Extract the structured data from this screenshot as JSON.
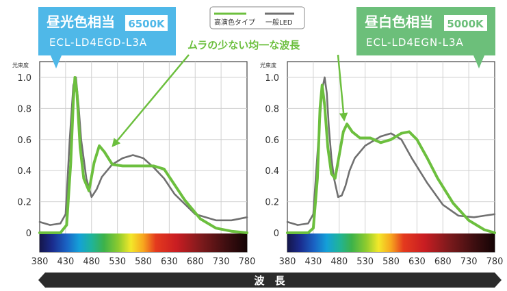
{
  "legend": {
    "high_cri": "高演色タイプ",
    "standard": "一般LED",
    "colors": {
      "high_cri": "#6cbf3e",
      "standard": "#707070"
    }
  },
  "annotation": {
    "text": "ムラの少ない均一な波長",
    "color": "#6cbf3e"
  },
  "x_axis_band_label": "波　長",
  "chart_data": [
    {
      "type": "line",
      "panel": "left",
      "title": "昼光色相当",
      "badge": "6500K",
      "model": "ECL-LD4EGD-L3A",
      "title_color": "#4fb8e8",
      "ylabel": "光束度",
      "xlim": [
        380,
        780
      ],
      "ylim": [
        0,
        1.0
      ],
      "xticks": [
        "380",
        "430",
        "480",
        "530",
        "580",
        "630",
        "680",
        "730",
        "780"
      ],
      "yticks": [
        "0",
        "0.2",
        "0.4",
        "0.6",
        "0.8",
        "1.0"
      ],
      "series": [
        {
          "name": "高演色タイプ",
          "x": [
            380,
            420,
            432,
            440,
            445,
            448,
            452,
            458,
            465,
            475,
            485,
            495,
            505,
            520,
            540,
            560,
            600,
            620,
            640,
            660,
            690,
            720,
            750,
            780
          ],
          "y": [
            0,
            0,
            0.05,
            0.45,
            0.85,
            1.0,
            0.9,
            0.55,
            0.35,
            0.27,
            0.45,
            0.56,
            0.52,
            0.44,
            0.43,
            0.43,
            0.43,
            0.41,
            0.31,
            0.21,
            0.09,
            0.03,
            0.01,
            0
          ]
        },
        {
          "name": "一般LED",
          "x": [
            380,
            400,
            420,
            430,
            438,
            445,
            450,
            455,
            460,
            470,
            480,
            490,
            500,
            520,
            540,
            560,
            580,
            600,
            620,
            640,
            680,
            720,
            750,
            780
          ],
          "y": [
            0.07,
            0.05,
            0.06,
            0.12,
            0.6,
            0.95,
            1.0,
            0.82,
            0.6,
            0.35,
            0.23,
            0.28,
            0.36,
            0.44,
            0.48,
            0.5,
            0.48,
            0.42,
            0.35,
            0.25,
            0.12,
            0.08,
            0.08,
            0.1
          ]
        }
      ]
    },
    {
      "type": "line",
      "panel": "right",
      "title": "昼白色相当",
      "badge": "5000K",
      "model": "ECL-LD4EGN-L3A",
      "title_color": "#6cbf7a",
      "ylabel": "光束度",
      "xlim": [
        380,
        780
      ],
      "ylim": [
        0,
        1.0
      ],
      "xticks": [
        "380",
        "430",
        "480",
        "530",
        "580",
        "630",
        "680",
        "730",
        "780"
      ],
      "yticks": [
        "0",
        "0.2",
        "0.4",
        "0.6",
        "0.8",
        "1.0"
      ],
      "series": [
        {
          "name": "高演色タイプ",
          "x": [
            380,
            420,
            430,
            438,
            443,
            447,
            452,
            458,
            465,
            472,
            480,
            488,
            495,
            505,
            520,
            540,
            560,
            580,
            600,
            615,
            630,
            650,
            670,
            700,
            730,
            760,
            780
          ],
          "y": [
            0,
            0,
            0.03,
            0.35,
            0.8,
            0.95,
            0.82,
            0.55,
            0.38,
            0.35,
            0.5,
            0.65,
            0.7,
            0.65,
            0.61,
            0.61,
            0.58,
            0.6,
            0.64,
            0.65,
            0.6,
            0.48,
            0.35,
            0.19,
            0.08,
            0.02,
            0
          ]
        },
        {
          "name": "一般LED",
          "x": [
            380,
            400,
            420,
            430,
            440,
            447,
            452,
            456,
            460,
            465,
            470,
            478,
            485,
            492,
            500,
            510,
            530,
            560,
            580,
            600,
            620,
            650,
            680,
            710,
            740,
            760,
            780
          ],
          "y": [
            0.07,
            0.05,
            0.06,
            0.12,
            0.6,
            0.92,
            1.0,
            0.9,
            0.68,
            0.48,
            0.35,
            0.23,
            0.24,
            0.3,
            0.4,
            0.48,
            0.56,
            0.62,
            0.64,
            0.6,
            0.48,
            0.32,
            0.18,
            0.11,
            0.1,
            0.11,
            0.12
          ]
        }
      ]
    }
  ]
}
